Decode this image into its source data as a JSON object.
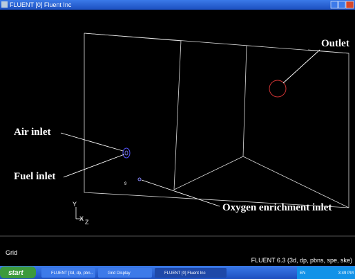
{
  "window": {
    "title": "FLUENT [0] Fluent Inc"
  },
  "viewport": {
    "labels": {
      "outlet": "Outlet",
      "air_inlet": "Air inlet",
      "fuel_inlet": "Fuel inlet",
      "oxygen_inlet": "Oxygen enrichment inlet"
    },
    "axes": {
      "y": "Y",
      "x": "X",
      "z": "Z"
    },
    "marker": "9"
  },
  "status": {
    "left": "Grid",
    "right": "FLUENT 6.3 (3d, dp, pbns, spe, ske)"
  },
  "taskbar": {
    "start": "start",
    "items": [
      "FLUENT [3d, dp, pbn...",
      "Grid Display",
      "FLUENT [0] Fluent Inc"
    ],
    "lang": "EN",
    "clock": "3:49 PM"
  }
}
